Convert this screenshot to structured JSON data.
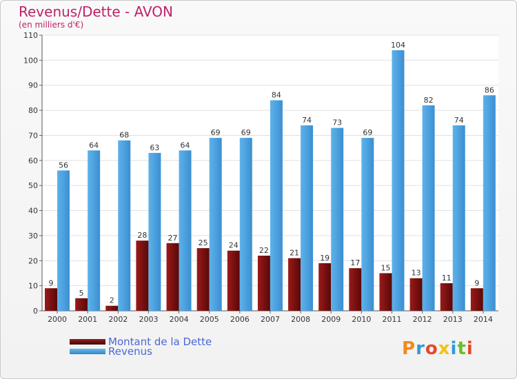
{
  "title": "Revenus/Dette - AVON",
  "subtitle": "(en milliers d'€)",
  "logo_text": "Proxiti",
  "colors": {
    "dette": "#7a1010",
    "revenus": "#4aa1e0",
    "title": "#c0206a",
    "legend_text": "#4a67d6"
  },
  "chart_data": {
    "type": "bar",
    "title": "Revenus/Dette - AVON",
    "subtitle": "(en milliers d'€)",
    "categories": [
      "2000",
      "2001",
      "2002",
      "2003",
      "2004",
      "2005",
      "2006",
      "2007",
      "2008",
      "2009",
      "2010",
      "2011",
      "2012",
      "2013",
      "2014"
    ],
    "series": [
      {
        "name": "Montant de la Dette",
        "values": [
          9,
          5,
          2,
          28,
          27,
          25,
          24,
          22,
          21,
          19,
          17,
          15,
          13,
          11,
          9
        ]
      },
      {
        "name": "Revenus",
        "values": [
          56,
          64,
          68,
          63,
          64,
          69,
          69,
          84,
          74,
          73,
          69,
          104,
          82,
          74,
          86
        ]
      }
    ],
    "ylim": [
      0,
      110
    ],
    "yticks": [
      0,
      10,
      20,
      30,
      40,
      50,
      60,
      70,
      80,
      90,
      100,
      110
    ],
    "grid": true,
    "legend": "bottom-left"
  }
}
